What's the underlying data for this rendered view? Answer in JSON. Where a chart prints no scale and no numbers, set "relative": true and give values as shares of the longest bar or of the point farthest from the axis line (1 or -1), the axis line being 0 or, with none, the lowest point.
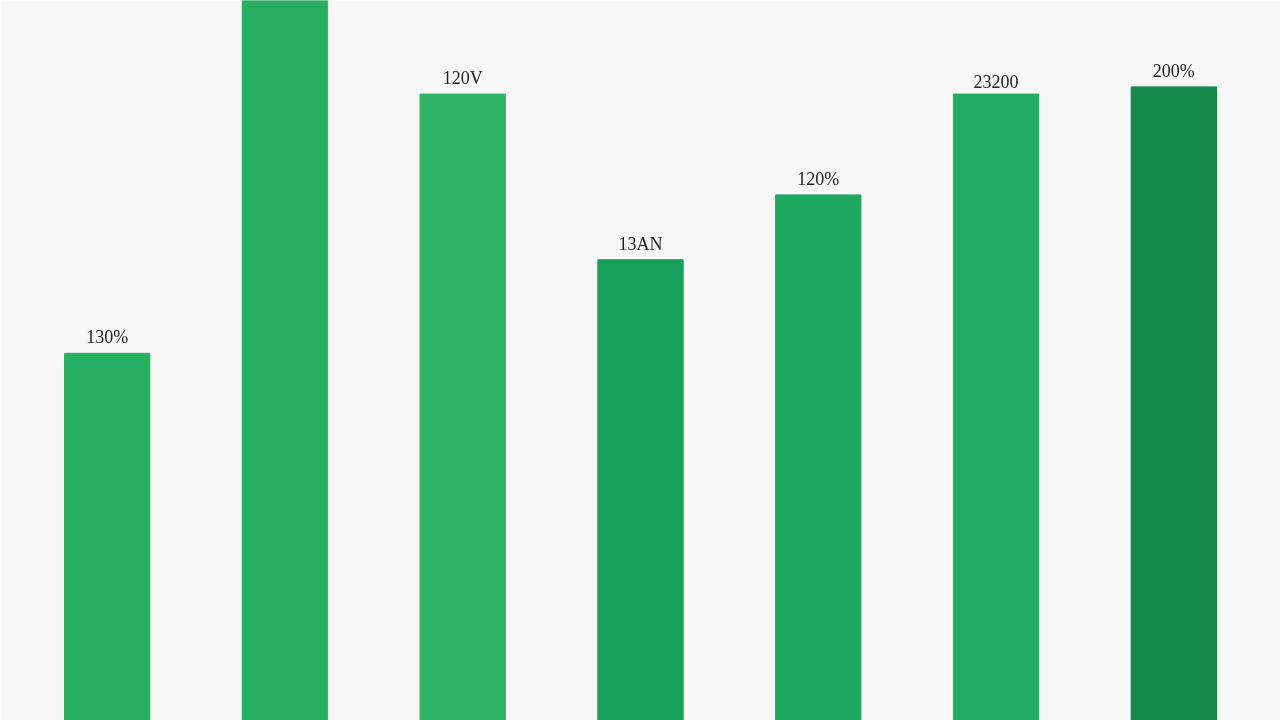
{
  "chart_data": {
    "type": "bar",
    "relative": true,
    "categories": [
      null,
      null,
      null,
      null,
      null,
      null,
      null
    ],
    "values": [
      0.51,
      1,
      0.87,
      0.64,
      0.73,
      0.87,
      0.88
    ],
    "colors": [
      "#27b062",
      "#27b062",
      "#2cb566",
      "#17a158",
      "#1fa860",
      "#23ad62",
      "#148a4a"
    ],
    "annotations": [
      "130%",
      "120V",
      "13AN",
      "120%",
      "23200",
      "200%"
    ]
  }
}
